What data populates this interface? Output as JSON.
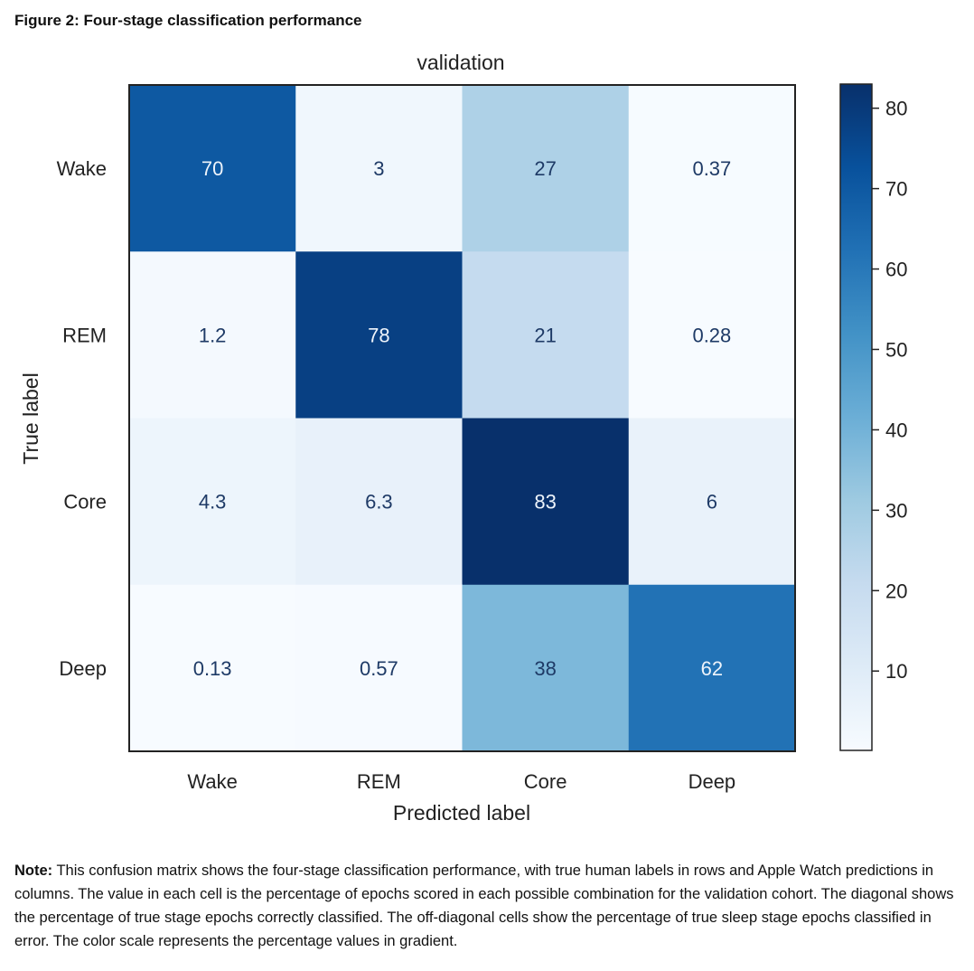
{
  "figure_title": "Figure 2: Four-stage classification performance",
  "note": {
    "label": "Note:",
    "text": "This confusion matrix shows the four-stage classification performance, with true human labels in rows and Apple Watch predictions in columns. The value in each cell is the percentage of epochs scored in each possible combination for the validation cohort. The diagonal shows the percentage of true stage epochs correctly classified. The off-diagonal cells show the percentage of true sleep stage epochs classified in error. The color scale represents the percentage values in gradient."
  },
  "chart_data": {
    "type": "heatmap",
    "title": "validation",
    "xlabel": "Predicted label",
    "ylabel": "True label",
    "x_categories": [
      "Wake",
      "REM",
      "Core",
      "Deep"
    ],
    "y_categories": [
      "Wake",
      "REM",
      "Core",
      "Deep"
    ],
    "values": [
      [
        70,
        3,
        27,
        0.37
      ],
      [
        1.2,
        78,
        21,
        0.28
      ],
      [
        4.3,
        6.3,
        83,
        6
      ],
      [
        0.13,
        0.57,
        38,
        62
      ]
    ],
    "cell_labels": [
      [
        "70",
        "3",
        "27",
        "0.37"
      ],
      [
        "1.2",
        "78",
        "21",
        "0.28"
      ],
      [
        "4.3",
        "6.3",
        "83",
        "6"
      ],
      [
        "0.13",
        "0.57",
        "38",
        "62"
      ]
    ],
    "colorbar": {
      "min": 0.13,
      "max": 83,
      "ticks": [
        10,
        20,
        30,
        40,
        50,
        60,
        70,
        80
      ],
      "colormap": "Blues",
      "colors": [
        "#f7fbff",
        "#deebf7",
        "#c6dbef",
        "#9ecae1",
        "#6baed6",
        "#4292c6",
        "#2171b5",
        "#08519c",
        "#08306b"
      ]
    }
  }
}
